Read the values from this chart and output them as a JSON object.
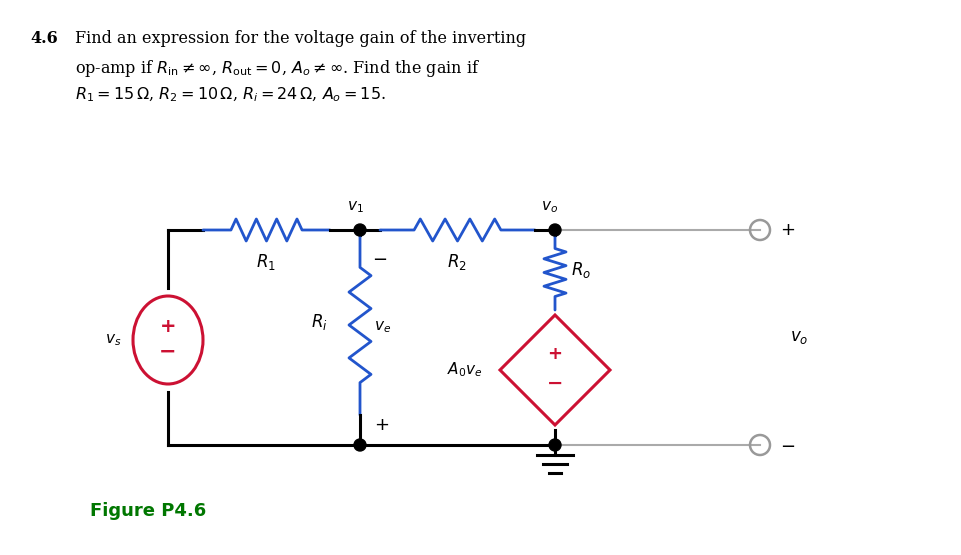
{
  "bg_color": "#ffffff",
  "text_color": "#000000",
  "red_color": "#cc1133",
  "blue_color": "#2255cc",
  "gray_color": "#aaaaaa",
  "green_color": "#007700",
  "lw_main": 2.2,
  "lw_gray": 1.5,
  "lw_res": 2.0
}
